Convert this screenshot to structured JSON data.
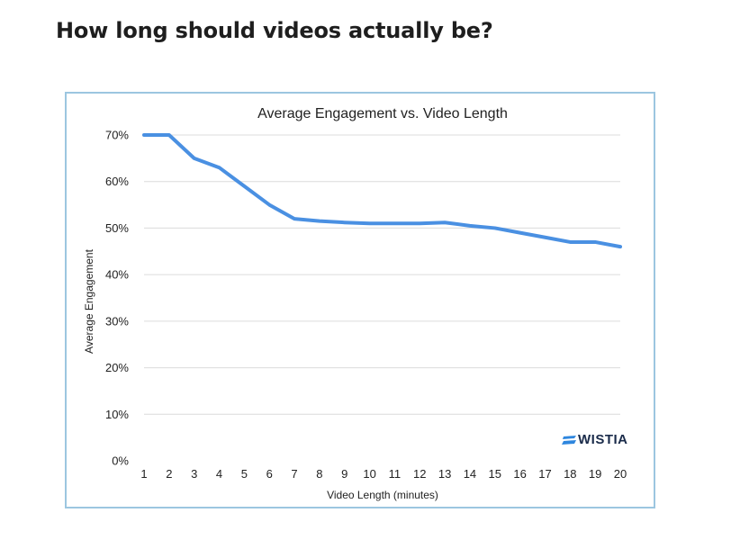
{
  "page": {
    "heading": "How long should videos actually be?"
  },
  "logo": {
    "text": "WISTIA",
    "icon": "wistia-logo-icon",
    "color": "#2e86de"
  },
  "colors": {
    "line": "#4a90e2",
    "frame_border": "#9cc6e0"
  },
  "chart_data": {
    "type": "line",
    "title": "Average Engagement vs. Video Length",
    "xlabel": "Video Length (minutes)",
    "ylabel": "Average Engagement",
    "x": [
      1,
      2,
      3,
      4,
      5,
      6,
      7,
      8,
      9,
      10,
      11,
      12,
      13,
      14,
      15,
      16,
      17,
      18,
      19,
      20
    ],
    "x_tick_labels": [
      "1",
      "2",
      "3",
      "4",
      "5",
      "6",
      "7",
      "8",
      "9",
      "10",
      "11",
      "12",
      "13",
      "14",
      "15",
      "16",
      "17",
      "18",
      "19",
      "20"
    ],
    "series": [
      {
        "values": [
          70,
          70,
          65,
          63,
          59,
          55,
          52,
          51.5,
          51.2,
          51,
          51,
          51,
          51.2,
          50.5,
          50,
          49,
          48,
          47,
          47,
          46
        ]
      }
    ],
    "y_ticks": [
      0,
      10,
      20,
      30,
      40,
      50,
      60,
      70
    ],
    "y_tick_labels": [
      "0%",
      "10%",
      "20%",
      "30%",
      "40%",
      "50%",
      "60%",
      "70%"
    ],
    "ylim": [
      0,
      70
    ],
    "xlim": [
      1,
      20
    ],
    "grid": true,
    "legend": false
  }
}
